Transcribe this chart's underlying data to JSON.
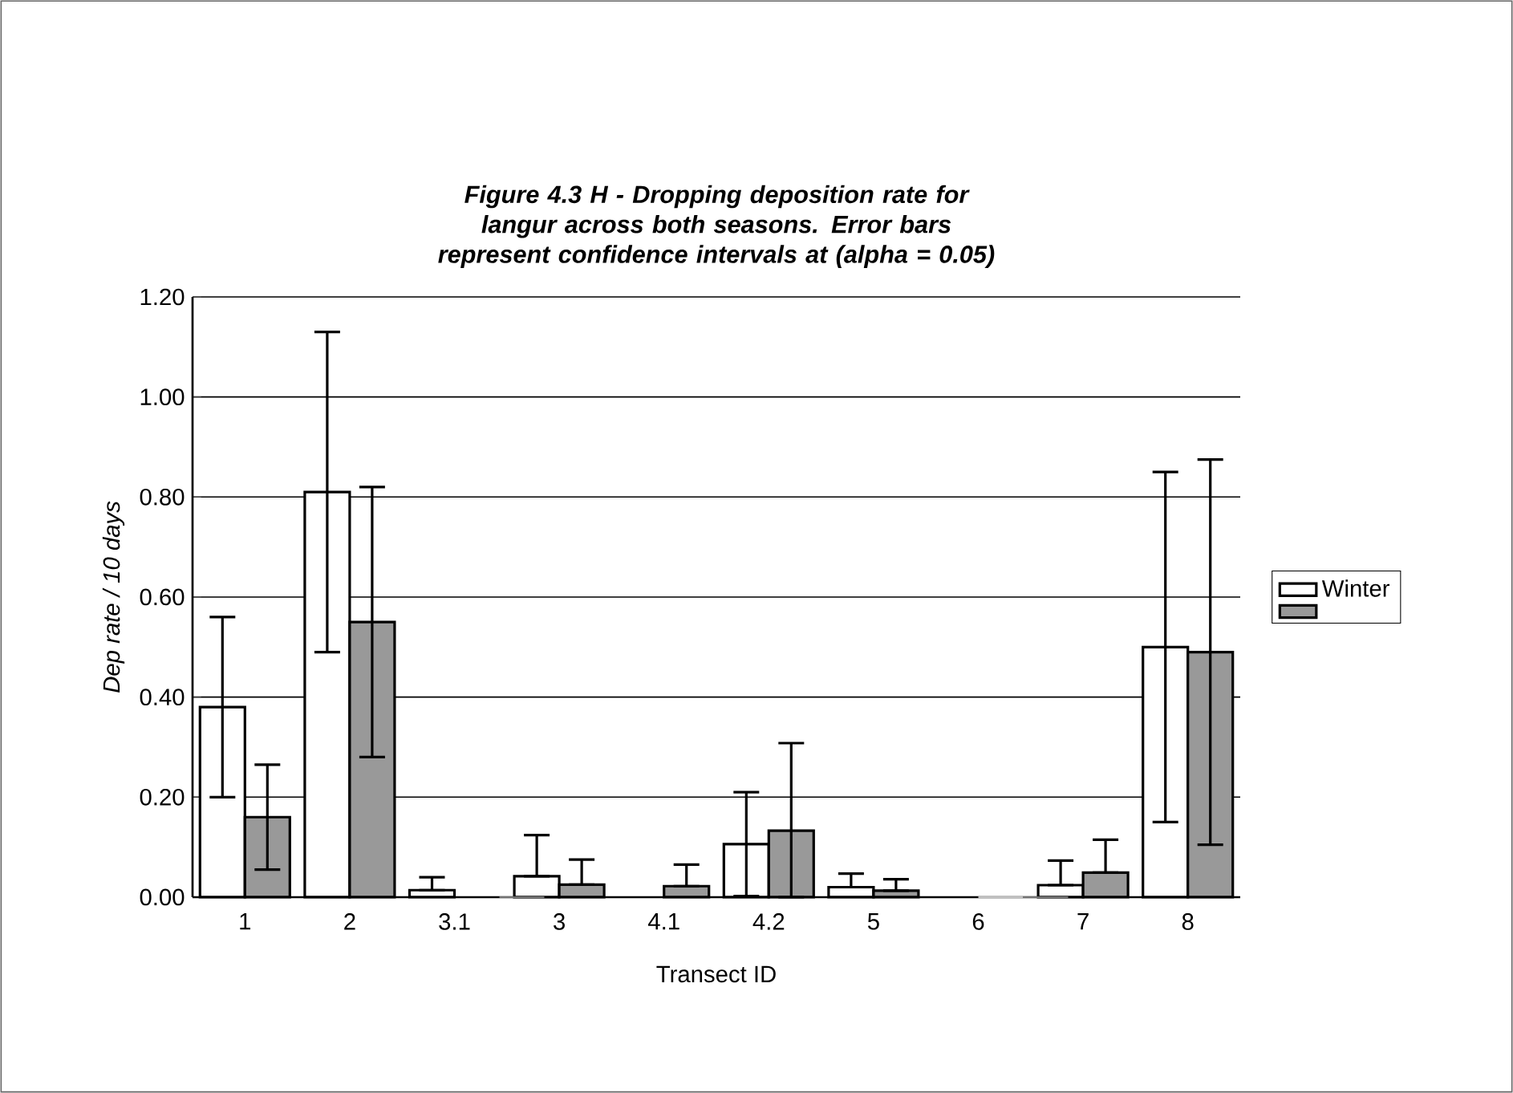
{
  "chart_data": {
    "type": "bar",
    "title": "Figure 4.3 H - Dropping deposition rate for langur across both seasons. Error bars represent confidence intervals at (alpha  = 0.05)",
    "xlabel": "Transect ID",
    "ylabel": "Dep rate / 10 days",
    "categories": [
      "1",
      "2",
      "3.1",
      "3",
      "4.1",
      "4.2",
      "5",
      "6",
      "7",
      "8"
    ],
    "series": [
      {
        "name": "Winter",
        "color": "#ffffff",
        "values": [
          0.38,
          0.81,
          0.014,
          0.042,
          0,
          0.106,
          0.02,
          0,
          0.024,
          0.5
        ],
        "errors": [
          0.18,
          0.32,
          [
            0.014,
            0.04
          ],
          [
            0.042,
            0.124
          ],
          null,
          0.104,
          [
            0.02,
            0.047
          ],
          null,
          [
            0.024,
            0.073
          ],
          0.35
        ]
      },
      {
        "color": "#999999",
        "values": [
          0.16,
          0.55,
          0,
          0.025,
          0.022,
          0.133,
          0.013,
          0,
          0.049,
          0.49
        ],
        "errors": [
          0.105,
          0.27,
          null,
          [
            0.025,
            0.075
          ],
          [
            0.022,
            0.065
          ],
          [
            0,
            0.308
          ],
          [
            0.013,
            0.036
          ],
          null,
          [
            0.049,
            0.115
          ],
          0.385
        ]
      }
    ],
    "ylim": [
      0,
      1.2
    ],
    "yticks": [
      {
        "value": 0,
        "label": "0.00"
      },
      {
        "value": 0.2,
        "label": "0.20"
      },
      {
        "value": 0.4,
        "label": "0.40"
      },
      {
        "value": 0.6,
        "label": "0.60"
      },
      {
        "value": 0.8,
        "label": "0.80"
      },
      {
        "value": 1.0,
        "label": "1.00"
      },
      {
        "value": 1.2,
        "label": "1.20"
      }
    ],
    "grid": "y",
    "legend": "right"
  }
}
